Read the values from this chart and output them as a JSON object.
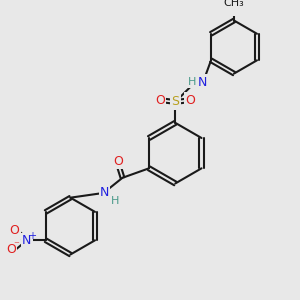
{
  "bg_color": "#e8e8e8",
  "bond_color": "#1a1a1a",
  "bond_width": 1.5,
  "atom_colors": {
    "C": "#1a1a1a",
    "H": "#4a9a8a",
    "N": "#2020e0",
    "O": "#e02020",
    "S": "#b8a020",
    "N+": "#2020e0",
    "O-": "#e02020"
  },
  "font_size": 9
}
